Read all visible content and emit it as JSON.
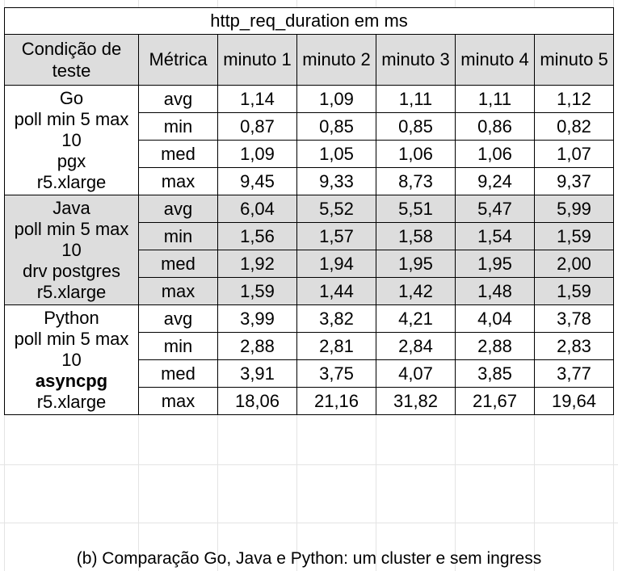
{
  "title": "http_req_duration em ms",
  "headers": [
    "Condição de teste",
    "Métrica",
    "minuto 1",
    "minuto 2",
    "minuto 3",
    "minuto 4",
    "minuto 5"
  ],
  "groups": [
    {
      "condition": [
        "Go",
        "poll min 5 max",
        "10",
        "pgx",
        "r5.xlarge"
      ],
      "rows": [
        {
          "metric": "avg",
          "values": [
            "1,14",
            "1,09",
            "1,11",
            "1,11",
            "1,12"
          ]
        },
        {
          "metric": "min",
          "values": [
            "0,87",
            "0,85",
            "0,85",
            "0,86",
            "0,82"
          ]
        },
        {
          "metric": "med",
          "values": [
            "1,09",
            "1,05",
            "1,06",
            "1,06",
            "1,07"
          ]
        },
        {
          "metric": "max",
          "values": [
            "9,45",
            "9,33",
            "8,73",
            "9,24",
            "9,37"
          ]
        }
      ]
    },
    {
      "condition": [
        "Java",
        "poll min 5 max",
        "10",
        "drv postgres",
        "r5.xlarge"
      ],
      "rows": [
        {
          "metric": "avg",
          "values": [
            "6,04",
            "5,52",
            "5,51",
            "5,47",
            "5,99"
          ]
        },
        {
          "metric": "min",
          "values": [
            "1,56",
            "1,57",
            "1,58",
            "1,54",
            "1,59"
          ]
        },
        {
          "metric": "med",
          "values": [
            "1,92",
            "1,94",
            "1,95",
            "1,95",
            "2,00"
          ]
        },
        {
          "metric": "max",
          "values": [
            "1,59",
            "1,44",
            "1,42",
            "1,48",
            "1,59"
          ]
        }
      ]
    },
    {
      "condition": [
        "Python",
        "poll min 5 max",
        "10",
        "asyncpg",
        "r5.xlarge"
      ],
      "rows": [
        {
          "metric": "avg",
          "values": [
            "3,99",
            "3,82",
            "4,21",
            "4,04",
            "3,78"
          ]
        },
        {
          "metric": "min",
          "values": [
            "2,88",
            "2,81",
            "2,84",
            "2,88",
            "2,83"
          ]
        },
        {
          "metric": "med",
          "values": [
            "3,91",
            "3,75",
            "4,07",
            "3,85",
            "3,77"
          ]
        },
        {
          "metric": "max",
          "values": [
            "18,06",
            "21,16",
            "31,82",
            "21,67",
            "19,64"
          ]
        }
      ]
    }
  ],
  "caption": "(b) Comparação Go, Java e Python: um cluster e sem ingress",
  "colors": {
    "header_bg": "#dddddd",
    "shaded_group_bg": "#dddddd",
    "border": "#000000"
  }
}
